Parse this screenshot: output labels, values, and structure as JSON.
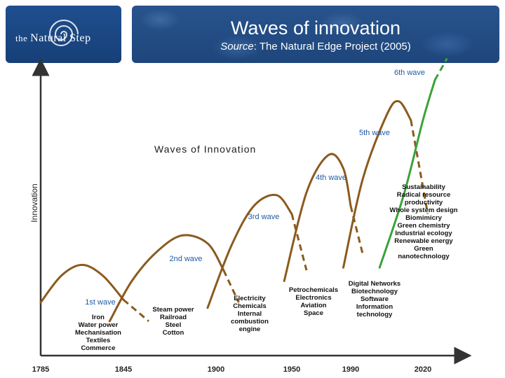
{
  "header": {
    "logo_text_a": "the ",
    "logo_text_b": "Natural Step",
    "title": "Waves of innovation",
    "subtitle_source": "Source",
    "subtitle_rest": ": The Natural Edge Project (2005)"
  },
  "colors": {
    "header_bg": "#1e467c",
    "brown": "#8b5a1e",
    "green": "#3aa33a",
    "wave_label": "#1f5aa6",
    "axis": "#333333"
  },
  "chart_data": {
    "type": "line",
    "title": "Waves of Innovation",
    "ylabel": "Innovation",
    "xlabel": "",
    "xlim": [
      1785,
      2035
    ],
    "ylim": [
      0,
      100
    ],
    "x_ticks": [
      1785,
      1845,
      1900,
      1950,
      1990,
      2020
    ],
    "series": [
      {
        "name": "1st wave",
        "x": [
          1785,
          1800,
          1815,
          1830,
          1845,
          1860
        ],
        "y": [
          12,
          22,
          26,
          22,
          13,
          5
        ],
        "innovations": [
          "Iron",
          "Water power",
          "Mechanisation",
          "Textiles",
          "Commerce"
        ]
      },
      {
        "name": "2nd wave",
        "x": [
          1835,
          1850,
          1865,
          1880,
          1895,
          1905,
          1915
        ],
        "y": [
          5,
          20,
          31,
          37,
          34,
          24,
          12
        ],
        "innovations": [
          "Steam power",
          "Railroad",
          "Steel",
          "Cotton"
        ]
      },
      {
        "name": "3rd wave",
        "x": [
          1895,
          1910,
          1925,
          1940,
          1950,
          1960
        ],
        "y": [
          10,
          33,
          48,
          52,
          45,
          24
        ],
        "innovations": [
          "Electricity",
          "Chemicals",
          "Internal combustion engine"
        ]
      },
      {
        "name": "4th wave",
        "x": [
          1945,
          1960,
          1975,
          1985,
          1990,
          1995
        ],
        "y": [
          20,
          53,
          67,
          62,
          48,
          30
        ],
        "innovations": [
          "Petrochemicals",
          "Electronics",
          "Aviation",
          "Space"
        ]
      },
      {
        "name": "5th wave",
        "x": [
          1985,
          1995,
          2005,
          2010,
          2015,
          2022
        ],
        "y": [
          25,
          58,
          82,
          87,
          80,
          45
        ],
        "innovations": [
          "Digital Networks",
          "Biotechnology",
          "Software",
          "Information technology"
        ]
      },
      {
        "name": "6th wave",
        "x": [
          2002,
          2012,
          2020,
          2025,
          2030
        ],
        "y": [
          25,
          52,
          80,
          95,
          103
        ],
        "innovations": [
          "Sustainability",
          "Radical resource productivity",
          "Whole system design",
          "Biomimicry",
          "Green chemistry",
          "Industrial ecology",
          "Renewable energy",
          "Green nanotechnology"
        ]
      }
    ]
  }
}
